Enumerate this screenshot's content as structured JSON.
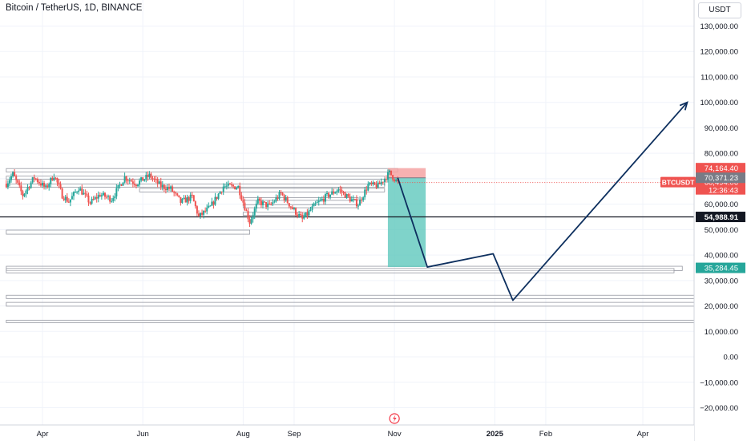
{
  "header": {
    "symbol_title": "Bitcoin / TetherUS, 1D, BINANCE",
    "currency_button": "USDT"
  },
  "colors": {
    "bull": "#26a69a",
    "bear": "#ef5350",
    "projection_line": "#0d2f5e",
    "target_zone": "#5fc8bd",
    "stop_zone": "#f4a3a3",
    "grid": "#f0f3fa",
    "axis_text": "#131722",
    "level_line": "#131722"
  },
  "chart_data": {
    "type": "candlestick",
    "symbol": "BTCUSDT",
    "interval": "1D",
    "exchange": "BINANCE",
    "y_axis": {
      "range": [
        -25000,
        135000
      ],
      "ticks": [
        130000,
        120000,
        110000,
        100000,
        90000,
        80000,
        70000,
        60000,
        50000,
        40000,
        30000,
        20000,
        10000,
        0,
        -10000,
        -20000
      ],
      "tick_labels": [
        "130,000.00",
        "120,000.00",
        "110,000.00",
        "100,000.00",
        "90,000.00",
        "80,000.00",
        "70,000.00",
        "60,000.00",
        "50,000.00",
        "40,000.00",
        "30,000.00",
        "20,000.00",
        "10,000.00",
        "0.00",
        "−10,000.00",
        "−20,000.00"
      ],
      "scale": "linear"
    },
    "x_axis": {
      "range": [
        "2024-03-10",
        "2025-05-10"
      ],
      "ticks": [
        {
          "date": "2024-04-01",
          "label": "Apr",
          "bold": false
        },
        {
          "date": "2024-06-01",
          "label": "Jun",
          "bold": false
        },
        {
          "date": "2024-08-01",
          "label": "Aug",
          "bold": false
        },
        {
          "date": "2024-09-01",
          "label": "Sep",
          "bold": false
        },
        {
          "date": "2024-11-01",
          "label": "Nov",
          "bold": false
        },
        {
          "date": "2025-01-01",
          "label": "2025",
          "bold": true
        },
        {
          "date": "2025-02-01",
          "label": "Feb",
          "bold": false
        },
        {
          "date": "2025-04-01",
          "label": "Apr",
          "bold": false
        }
      ]
    },
    "price_path": {
      "dates": [
        "2024-03-10",
        "2024-03-14",
        "2024-03-20",
        "2024-03-27",
        "2024-04-03",
        "2024-04-08",
        "2024-04-13",
        "2024-04-17",
        "2024-04-23",
        "2024-04-30",
        "2024-05-06",
        "2024-05-13",
        "2024-05-21",
        "2024-05-28",
        "2024-06-05",
        "2024-06-12",
        "2024-06-18",
        "2024-06-24",
        "2024-07-01",
        "2024-07-05",
        "2024-07-12",
        "2024-07-20",
        "2024-07-29",
        "2024-08-05",
        "2024-08-10",
        "2024-08-17",
        "2024-08-24",
        "2024-08-31",
        "2024-09-06",
        "2024-09-14",
        "2024-09-21",
        "2024-09-28",
        "2024-10-05",
        "2024-10-10",
        "2024-10-16",
        "2024-10-22",
        "2024-10-29",
        "2024-11-03"
      ],
      "values": [
        68000,
        71800,
        63500,
        70500,
        66200,
        71500,
        63500,
        61000,
        66500,
        60500,
        63800,
        62000,
        70600,
        68100,
        71200,
        67100,
        66000,
        60800,
        62800,
        55000,
        58800,
        67000,
        66800,
        53000,
        61000,
        59200,
        64200,
        58300,
        54000,
        59800,
        63200,
        65800,
        62000,
        60000,
        67500,
        67200,
        72300,
        68494.06
      ]
    },
    "current_price": 68494.06,
    "symbol_tag": "BTCUSDT",
    "countdown": "12:36:43",
    "position_tool": {
      "type": "short",
      "start_date": "2024-10-28",
      "end_date": "2024-11-20",
      "entry": 70371.23,
      "stop": 74164.4,
      "target": 35284.45
    },
    "horizontal_level": 54988.91,
    "price_labels": [
      {
        "value": 74164.4,
        "text": "74,164.40",
        "bg": "#ef5350"
      },
      {
        "value": 70371.23,
        "text": "70,371.23",
        "bg": "#787b86"
      },
      {
        "value": 54988.91,
        "text": "54,988.91",
        "bg": "#131722"
      },
      {
        "value": 35284.45,
        "text": "35,284.45",
        "bg": "#26a69a"
      }
    ],
    "zones": [
      {
        "from": "2024-03-10",
        "to": "2024-11-03",
        "low": 72600,
        "high": 74000
      },
      {
        "from": "2024-03-10",
        "to": "2024-10-26",
        "low": 69800,
        "high": 71000
      },
      {
        "from": "2024-03-10",
        "to": "2024-10-26",
        "low": 66700,
        "high": 67900
      },
      {
        "from": "2024-05-30",
        "to": "2024-10-26",
        "low": 64800,
        "high": 66200
      },
      {
        "from": "2024-08-01",
        "to": "2024-10-10",
        "low": 61500,
        "high": 62600
      },
      {
        "from": "2024-08-01",
        "to": "2024-10-10",
        "low": 58600,
        "high": 59800
      },
      {
        "from": "2024-08-01",
        "to": "2024-09-10",
        "low": 55600,
        "high": 56800
      },
      {
        "from": "2024-03-10",
        "to": "2024-08-05",
        "low": 48200,
        "high": 49800
      },
      {
        "from": "2024-03-10",
        "to": "2025-04-25",
        "low": 33900,
        "high": 35600
      },
      {
        "from": "2024-03-10",
        "to": "2025-04-20",
        "low": 33000,
        "high": 34700
      },
      {
        "from": "2024-03-10",
        "to": "2025-05-10",
        "low": 22900,
        "high": 24200
      },
      {
        "from": "2024-03-10",
        "to": "2025-05-10",
        "low": 19900,
        "high": 21400
      },
      {
        "from": "2024-03-10",
        "to": "2025-05-10",
        "low": 13400,
        "high": 14400
      }
    ],
    "projection": {
      "dates": [
        "2024-11-03",
        "2024-11-21",
        "2024-12-31",
        "2025-01-12",
        "2025-04-28"
      ],
      "values": [
        70371.23,
        35284.45,
        40500,
        22200,
        100000
      ]
    },
    "annotations": [
      {
        "type": "event-icon",
        "date": "2024-11-01"
      }
    ]
  }
}
